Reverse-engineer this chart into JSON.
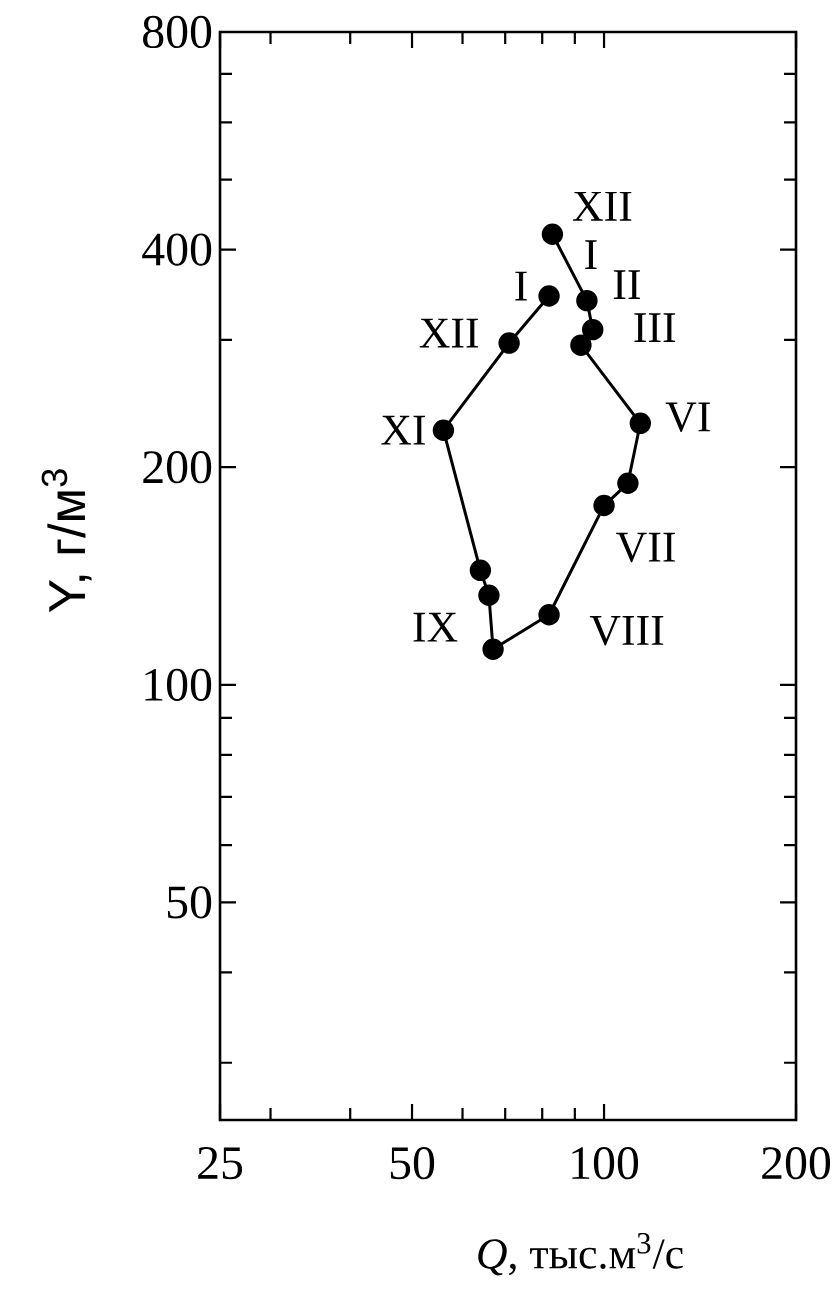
{
  "chart_data": {
    "type": "line",
    "xlabel": "*Q*, тыс.м$^{3}$/с",
    "ylabel": "Y, г/м$^{3}$",
    "x": [
      83,
      94,
      96,
      92,
      114,
      109,
      100,
      82,
      67,
      66,
      64,
      56,
      71,
      82
    ],
    "series": [
      {
        "color": "#000000",
        "values": [
          420,
          340,
          310,
          295,
          230,
          190,
          177,
          125,
          112,
          133,
          144,
          225,
          297,
          345
        ]
      }
    ],
    "marker": "circle",
    "line_style": "solid",
    "log": "xy",
    "xlim": [
      25,
      200
    ],
    "ylim": [
      25,
      800
    ],
    "xticks": [
      25,
      {
        "value": 30,
        "label": null
      },
      {
        "value": 40,
        "label": null
      },
      50,
      {
        "value": 60,
        "label": null
      },
      {
        "value": 70,
        "label": null
      },
      {
        "value": 80,
        "label": null
      },
      {
        "value": 90,
        "label": null
      },
      100,
      200
    ],
    "yticks": [
      {
        "value": 30,
        "label": null
      },
      {
        "value": 40,
        "label": null
      },
      50,
      {
        "value": 60,
        "label": null
      },
      {
        "value": 70,
        "label": null
      },
      {
        "value": 80,
        "label": null
      },
      {
        "value": 90,
        "label": null
      },
      100,
      200,
      {
        "value": 300,
        "label": null
      },
      400,
      {
        "value": 500,
        "label": null
      },
      {
        "value": 600,
        "label": null
      },
      {
        "value": 700,
        "label": null
      },
      800
    ],
    "annotations": [
      {
        "text": "XII",
        "x": 83,
        "y": 420
      },
      {
        "text": "I",
        "x": 94,
        "y": 340
      },
      {
        "text": "II",
        "x": 94,
        "y": 340
      },
      {
        "text": "III",
        "x": 96,
        "y": 310
      },
      {
        "text": "VI",
        "x": 114,
        "y": 230
      },
      {
        "text": "VII",
        "x": 100,
        "y": 177
      },
      {
        "text": "VIII",
        "x": 82,
        "y": 125
      },
      {
        "text": "IX",
        "x": 67,
        "y": 112
      },
      {
        "text": "XI",
        "x": 56,
        "y": 225
      },
      {
        "text": "XII",
        "x": 71,
        "y": 297
      },
      {
        "text": "I",
        "x": 82,
        "y": 345
      }
    ]
  }
}
